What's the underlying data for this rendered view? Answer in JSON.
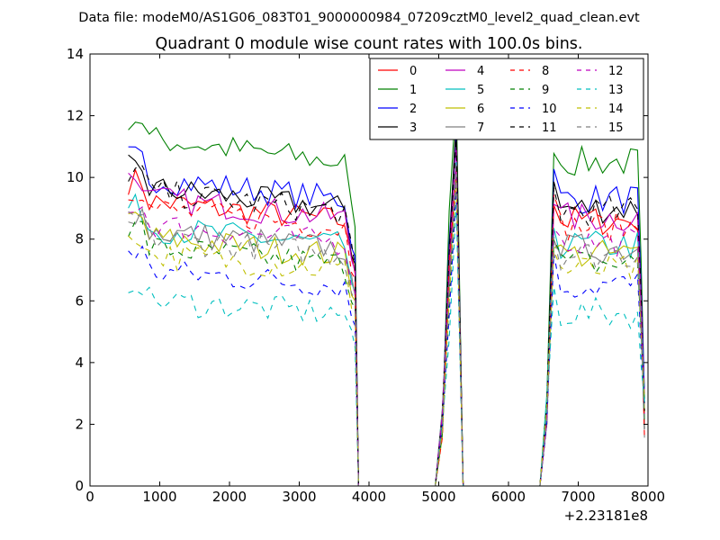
{
  "chart_data": {
    "type": "line",
    "suptitle": "Data file: modeM0/AS1G06_083T01_9000000984_07209cztM0_level2_quad_clean.evt",
    "title": "Quadrant 0 module wise count rates with 100.0s bins.",
    "xlabel": "",
    "ylabel": "",
    "x_offset_label": "+2.23181e8",
    "xlim": [
      0,
      8000
    ],
    "ylim": [
      0,
      14
    ],
    "xticks": [
      "0",
      "1000",
      "2000",
      "3000",
      "4000",
      "5000",
      "6000",
      "7000",
      "8000"
    ],
    "yticks": [
      "0",
      "2",
      "4",
      "6",
      "8",
      "10",
      "12",
      "14"
    ],
    "x_segments": [
      [
        550,
        3850
      ],
      [
        5050,
        5350
      ],
      [
        6550,
        7950
      ]
    ],
    "series": [
      {
        "name": "0",
        "color": "#ff0000",
        "dash": "solid",
        "level": 8.6
      },
      {
        "name": "1",
        "color": "#008000",
        "dash": "solid",
        "level": 10.5
      },
      {
        "name": "2",
        "color": "#0000ff",
        "dash": "solid",
        "level": 9.3
      },
      {
        "name": "3",
        "color": "#000000",
        "dash": "solid",
        "level": 9.0
      },
      {
        "name": "4",
        "color": "#bf00bf",
        "dash": "solid",
        "level": 8.7
      },
      {
        "name": "5",
        "color": "#00bfbf",
        "dash": "solid",
        "level": 7.8
      },
      {
        "name": "6",
        "color": "#bfbf00",
        "dash": "solid",
        "level": 7.5
      },
      {
        "name": "7",
        "color": "#808080",
        "dash": "solid",
        "level": 7.7
      },
      {
        "name": "8",
        "color": "#ff0000",
        "dash": "dashed",
        "level": 8.4
      },
      {
        "name": "9",
        "color": "#008000",
        "dash": "dashed",
        "level": 7.2
      },
      {
        "name": "10",
        "color": "#0000ff",
        "dash": "dashed",
        "level": 6.5
      },
      {
        "name": "11",
        "color": "#000000",
        "dash": "dashed",
        "level": 8.9
      },
      {
        "name": "12",
        "color": "#bf00bf",
        "dash": "dashed",
        "level": 7.9
      },
      {
        "name": "13",
        "color": "#00bfbf",
        "dash": "dashed",
        "level": 5.6
      },
      {
        "name": "14",
        "color": "#bfbf00",
        "dash": "dashed",
        "level": 7.0
      },
      {
        "name": "15",
        "color": "#808080",
        "dash": "dashed",
        "level": 7.5
      }
    ],
    "legend_location": "top-right",
    "grid": false
  }
}
